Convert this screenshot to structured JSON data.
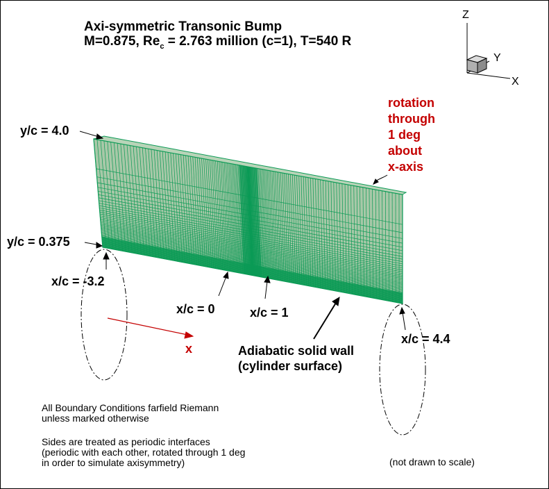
{
  "title": {
    "line1": "Axi-symmetric Transonic Bump",
    "line2_pre": "M=0.875, Re",
    "line2_sub": "c",
    "line2_post": " = 2.763 million (c=1), T=540 R"
  },
  "axes_triad": {
    "z": "Z",
    "y": "Y",
    "x": "X"
  },
  "labels": {
    "y_top": "y/c = 4.0",
    "y_bottom": "y/c = 0.375",
    "x_start": "x/c = -3.2",
    "x_zero": "x/c = 0",
    "x_one": "x/c = 1",
    "x_end": "x/c = 4.4",
    "x_arrow": "x",
    "wall_line1": "Adiabatic solid wall",
    "wall_line2": "(cylinder surface)"
  },
  "rotation_note": [
    "rotation",
    "through",
    "1 deg",
    "about",
    "x-axis"
  ],
  "notes": {
    "bc_line1": "All Boundary Conditions farfield Riemann",
    "bc_line2": "unless marked otherwise",
    "sides_line1": "Sides are treated as periodic interfaces",
    "sides_line2": "(periodic with each other, rotated through 1 deg",
    "sides_line3": "in order to simulate axisymmetry)",
    "scale": "(not drawn to scale)"
  },
  "colors": {
    "mesh_fill": "#a8c8a8",
    "mesh_line": "#0a9a55",
    "accent_red": "#c40000",
    "ink": "#000000"
  }
}
